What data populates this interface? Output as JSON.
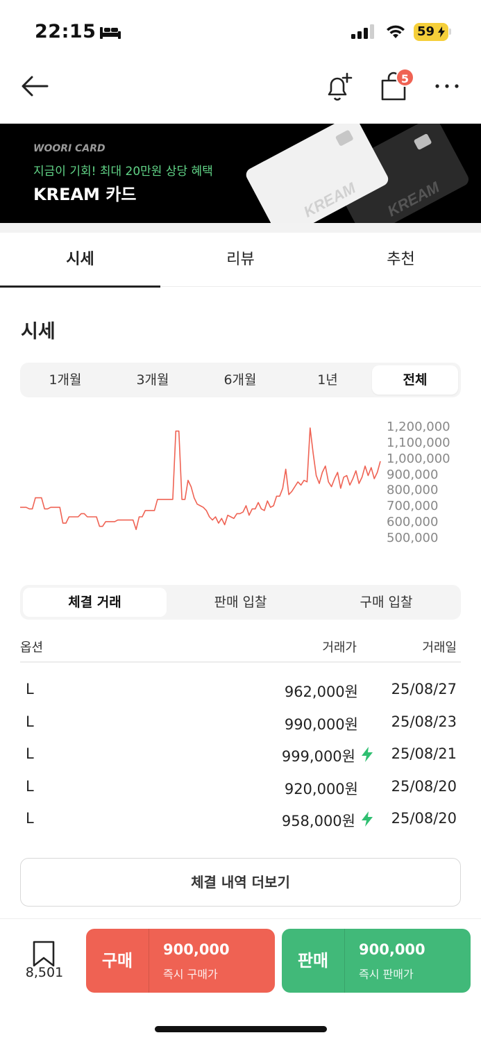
{
  "status_bar": {
    "time": "22:15",
    "battery": "59"
  },
  "nav": {
    "cart_badge": "5"
  },
  "banner": {
    "brand": "WOORI CARD",
    "promo": "지금이 기회! 최대 20만원 상당 혜택",
    "title": "KREAM 카드",
    "card_text": "KREAM"
  },
  "tabs": [
    {
      "label": "시세",
      "active": true
    },
    {
      "label": "리뷰",
      "active": false
    },
    {
      "label": "추천",
      "active": false
    }
  ],
  "section_title": "시세",
  "periods": [
    {
      "label": "1개월"
    },
    {
      "label": "3개월"
    },
    {
      "label": "6개월"
    },
    {
      "label": "1년"
    },
    {
      "label": "전체",
      "active": true
    }
  ],
  "chart_data": {
    "type": "line",
    "color": "#ef6253",
    "ylim": [
      500000,
      1200000
    ],
    "y_ticks": [
      "1,200,000",
      "1,100,000",
      "1,000,000",
      "900,000",
      "800,000",
      "700,000",
      "600,000",
      "500,000"
    ],
    "values": [
      700000,
      700000,
      700000,
      690000,
      690000,
      760000,
      760000,
      760000,
      690000,
      690000,
      700000,
      700000,
      700000,
      700000,
      600000,
      600000,
      640000,
      640000,
      640000,
      640000,
      660000,
      660000,
      640000,
      640000,
      640000,
      640000,
      580000,
      580000,
      610000,
      610000,
      610000,
      610000,
      620000,
      620000,
      620000,
      620000,
      620000,
      620000,
      560000,
      640000,
      640000,
      680000,
      680000,
      680000,
      680000,
      750000,
      750000,
      750000,
      750000,
      750000,
      750000,
      1180000,
      1180000,
      750000,
      750000,
      870000,
      830000,
      760000,
      720000,
      710000,
      700000,
      680000,
      640000,
      620000,
      640000,
      600000,
      630000,
      590000,
      650000,
      640000,
      630000,
      660000,
      660000,
      670000,
      710000,
      650000,
      690000,
      690000,
      730000,
      690000,
      680000,
      740000,
      700000,
      710000,
      770000,
      770000,
      820000,
      940000,
      780000,
      800000,
      830000,
      860000,
      840000,
      870000,
      860000,
      1200000,
      1040000,
      900000,
      850000,
      920000,
      960000,
      860000,
      830000,
      880000,
      920000,
      820000,
      890000,
      900000,
      840000,
      880000,
      930000,
      850000,
      890000,
      960000,
      900000,
      950000,
      880000,
      920000,
      990000
    ]
  },
  "trade_tabs": [
    {
      "label": "체결 거래",
      "active": true
    },
    {
      "label": "판매 입찰"
    },
    {
      "label": "구매 입찰"
    }
  ],
  "table": {
    "headers": {
      "option": "옵션",
      "price": "거래가",
      "date": "거래일"
    },
    "rows": [
      {
        "option": "L",
        "price": "962,000원",
        "date": "25/08/27",
        "flash": false
      },
      {
        "option": "L",
        "price": "990,000원",
        "date": "25/08/23",
        "flash": false
      },
      {
        "option": "L",
        "price": "999,000원",
        "date": "25/08/21",
        "flash": true
      },
      {
        "option": "L",
        "price": "920,000원",
        "date": "25/08/20",
        "flash": false
      },
      {
        "option": "L",
        "price": "958,000원",
        "date": "25/08/20",
        "flash": true
      }
    ]
  },
  "more_button": "체결 내역 더보기",
  "bottom": {
    "bookmark_count": "8,501",
    "buy": {
      "label": "구매",
      "price": "900,000",
      "sub": "즉시 구매가"
    },
    "sell": {
      "label": "판매",
      "price": "900,000",
      "sub": "즉시 판매가"
    }
  }
}
